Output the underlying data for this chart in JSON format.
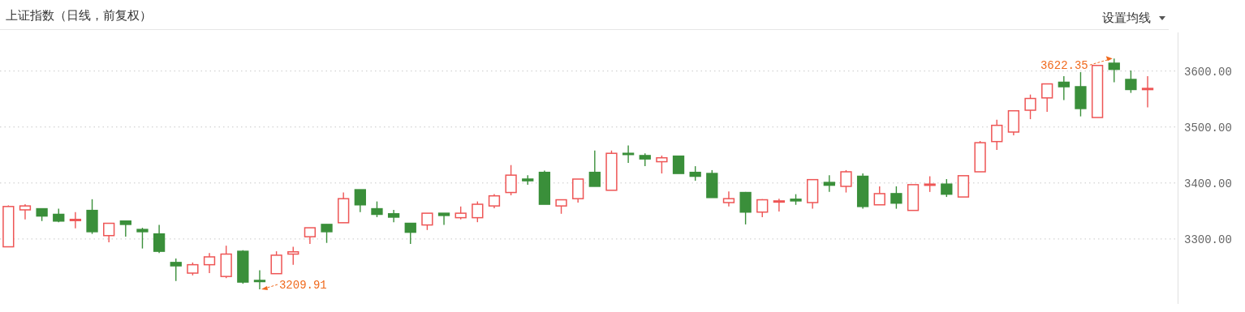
{
  "chart_data": {
    "type": "candlestick",
    "title": "上证指数（日线，前复权）",
    "annotations": [
      "设置均线",
      "3209.91",
      "3622.35"
    ],
    "categories": [
      null,
      null,
      null,
      null,
      null,
      null,
      null,
      null,
      null,
      null,
      null,
      null,
      null,
      null,
      null,
      null,
      null,
      null,
      null,
      null,
      null,
      null,
      null,
      null,
      null,
      null,
      null,
      null,
      null,
      null,
      null,
      null,
      null,
      null,
      null,
      null,
      null,
      null,
      null,
      null,
      null,
      null,
      null,
      null,
      null,
      null,
      null,
      null,
      null,
      null,
      null,
      null,
      null,
      null,
      null,
      null,
      null,
      null,
      null,
      null,
      null,
      null,
      null,
      null,
      null,
      null,
      null,
      null,
      null
    ],
    "ohlc": [
      [
        3286,
        3360,
        3286,
        3358
      ],
      [
        3352,
        3362,
        3335,
        3359
      ],
      [
        3354,
        3354,
        3332,
        3341
      ],
      [
        3344,
        3354,
        3330,
        3332
      ],
      [
        3333,
        3348,
        3319,
        3335
      ],
      [
        3351,
        3371,
        3309,
        3313
      ],
      [
        3306,
        3328,
        3294,
        3328
      ],
      [
        3332,
        3332,
        3304,
        3326
      ],
      [
        3317,
        3320,
        3283,
        3313
      ],
      [
        3309,
        3325,
        3275,
        3278
      ],
      [
        3258,
        3265,
        3225,
        3252
      ],
      [
        3239,
        3258,
        3235,
        3254
      ],
      [
        3254,
        3275,
        3239,
        3268
      ],
      [
        3233,
        3288,
        3230,
        3273
      ],
      [
        3278,
        3280,
        3220,
        3223
      ],
      [
        3226,
        3244,
        3209.91,
        3224
      ],
      [
        3238,
        3278,
        3238,
        3271
      ],
      [
        3273,
        3286,
        3254,
        3277
      ],
      [
        3304,
        3320,
        3291,
        3320
      ],
      [
        3326,
        3326,
        3293,
        3313
      ],
      [
        3329,
        3383,
        3329,
        3372
      ],
      [
        3388,
        3388,
        3348,
        3361
      ],
      [
        3354,
        3367,
        3339,
        3344
      ],
      [
        3345,
        3352,
        3330,
        3339
      ],
      [
        3328,
        3328,
        3291,
        3312
      ],
      [
        3325,
        3346,
        3316,
        3346
      ],
      [
        3346,
        3346,
        3325,
        3342
      ],
      [
        3338,
        3358,
        3335,
        3346
      ],
      [
        3338,
        3367,
        3330,
        3362
      ],
      [
        3359,
        3380,
        3355,
        3377
      ],
      [
        3383,
        3432,
        3378,
        3414
      ],
      [
        3407,
        3414,
        3397,
        3404
      ],
      [
        3419,
        3422,
        3362,
        3362
      ],
      [
        3359,
        3370,
        3345,
        3370
      ],
      [
        3372,
        3407,
        3365,
        3407
      ],
      [
        3419,
        3458,
        3394,
        3394
      ],
      [
        3387,
        3458,
        3387,
        3453
      ],
      [
        3453,
        3467,
        3436,
        3451
      ],
      [
        3449,
        3453,
        3430,
        3443
      ],
      [
        3438,
        3449,
        3417,
        3445
      ],
      [
        3448,
        3449,
        3417,
        3417
      ],
      [
        3419,
        3430,
        3404,
        3412
      ],
      [
        3417,
        3423,
        3374,
        3374
      ],
      [
        3365,
        3385,
        3358,
        3372
      ],
      [
        3383,
        3384,
        3326,
        3348
      ],
      [
        3348,
        3371,
        3339,
        3370
      ],
      [
        3366,
        3372,
        3349,
        3368
      ],
      [
        3371,
        3380,
        3361,
        3368
      ],
      [
        3365,
        3406,
        3354,
        3406
      ],
      [
        3401,
        3414,
        3384,
        3396
      ],
      [
        3394,
        3423,
        3383,
        3420
      ],
      [
        3412,
        3417,
        3354,
        3358
      ],
      [
        3361,
        3394,
        3361,
        3381
      ],
      [
        3381,
        3394,
        3354,
        3364
      ],
      [
        3351,
        3397,
        3351,
        3397
      ],
      [
        3396,
        3412,
        3384,
        3398
      ],
      [
        3398,
        3407,
        3375,
        3380
      ],
      [
        3375,
        3413,
        3375,
        3413
      ],
      [
        3420,
        3475,
        3420,
        3472
      ],
      [
        3474,
        3513,
        3459,
        3503
      ],
      [
        3491,
        3529,
        3485,
        3529
      ],
      [
        3530,
        3558,
        3514,
        3551
      ],
      [
        3552,
        3577,
        3527,
        3577
      ],
      [
        3580,
        3591,
        3548,
        3572
      ],
      [
        3572,
        3598,
        3519,
        3533
      ],
      [
        3517,
        3610,
        3517,
        3610
      ],
      [
        3614,
        3622.35,
        3580,
        3603
      ],
      [
        3585,
        3601,
        3561,
        3567
      ],
      [
        3567,
        3591,
        3535,
        3569
      ]
    ],
    "colors": [
      "#ee5555",
      "#ee5555",
      "#3a8f3a",
      "#3a8f3a",
      "#ee5555",
      "#3a8f3a",
      "#ee5555",
      "#3a8f3a",
      "#3a8f3a",
      "#3a8f3a",
      "#3a8f3a",
      "#ee5555",
      "#ee5555",
      "#ee5555",
      "#3a8f3a",
      "#3a8f3a",
      "#ee5555",
      "#ee5555",
      "#ee5555",
      "#3a8f3a",
      "#ee5555",
      "#3a8f3a",
      "#3a8f3a",
      "#3a8f3a",
      "#3a8f3a",
      "#ee5555",
      "#3a8f3a",
      "#ee5555",
      "#ee5555",
      "#ee5555",
      "#ee5555",
      "#3a8f3a",
      "#3a8f3a",
      "#ee5555",
      "#ee5555",
      "#3a8f3a",
      "#ee5555",
      "#3a8f3a",
      "#3a8f3a",
      "#ee5555",
      "#3a8f3a",
      "#3a8f3a",
      "#3a8f3a",
      "#ee5555",
      "#3a8f3a",
      "#ee5555",
      "#ee5555",
      "#3a8f3a",
      "#ee5555",
      "#3a8f3a",
      "#ee5555",
      "#3a8f3a",
      "#ee5555",
      "#3a8f3a",
      "#ee5555",
      "#ee5555",
      "#3a8f3a",
      "#ee5555",
      "#ee5555",
      "#ee5555",
      "#ee5555",
      "#ee5555",
      "#ee5555",
      "#3a8f3a",
      "#3a8f3a",
      "#ee5555",
      "#3a8f3a",
      "#3a8f3a",
      "#ee5555"
    ],
    "ylim": [
      3184,
      3669
    ],
    "yticks": [
      {
        "value": 3300,
        "label": "3300.00"
      },
      {
        "value": 3400,
        "label": "3400.00"
      },
      {
        "value": 3500,
        "label": "3500.00"
      },
      {
        "value": 3600,
        "label": "3600.00"
      }
    ],
    "grid": "y",
    "tick_labels": "y"
  }
}
